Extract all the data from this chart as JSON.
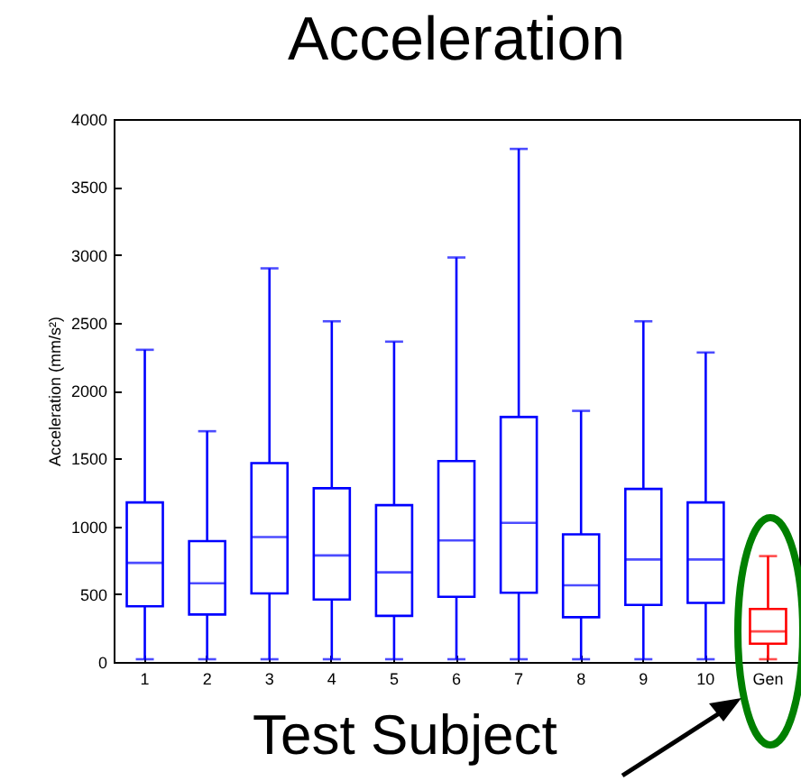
{
  "chart_data": {
    "type": "box",
    "title": "Acceleration",
    "ylabel": "Acceleration (mm/s²)",
    "categories": [
      "1",
      "2",
      "3",
      "4",
      "5",
      "6",
      "7",
      "8",
      "9",
      "10",
      "Gen"
    ],
    "boxes": [
      {
        "low": 20,
        "q1": 410,
        "median": 730,
        "q3": 1175,
        "high": 2300
      },
      {
        "low": 20,
        "q1": 350,
        "median": 580,
        "q3": 890,
        "high": 1700
      },
      {
        "low": 20,
        "q1": 505,
        "median": 920,
        "q3": 1465,
        "high": 2900
      },
      {
        "low": 20,
        "q1": 460,
        "median": 785,
        "q3": 1280,
        "high": 2510
      },
      {
        "low": 20,
        "q1": 340,
        "median": 660,
        "q3": 1155,
        "high": 2360
      },
      {
        "low": 20,
        "q1": 480,
        "median": 895,
        "q3": 1480,
        "high": 2980
      },
      {
        "low": 20,
        "q1": 510,
        "median": 1025,
        "q3": 1805,
        "high": 3780
      },
      {
        "low": 20,
        "q1": 330,
        "median": 565,
        "q3": 940,
        "high": 1850
      },
      {
        "low": 20,
        "q1": 420,
        "median": 755,
        "q3": 1275,
        "high": 2510
      },
      {
        "low": 20,
        "q1": 435,
        "median": 755,
        "q3": 1175,
        "high": 2280
      },
      {
        "low": 20,
        "q1": 135,
        "median": 225,
        "q3": 390,
        "high": 780
      }
    ],
    "colors": [
      "#0000ff",
      "#0000ff",
      "#0000ff",
      "#0000ff",
      "#0000ff",
      "#0000ff",
      "#0000ff",
      "#0000ff",
      "#0000ff",
      "#0000ff",
      "#ff0000"
    ],
    "ylim": [
      0,
      4000
    ],
    "yticks": [
      0,
      500,
      1000,
      1500,
      2000,
      2500,
      3000,
      3500,
      4000
    ],
    "grid": false,
    "annotations": [
      "Test Subject"
    ]
  }
}
